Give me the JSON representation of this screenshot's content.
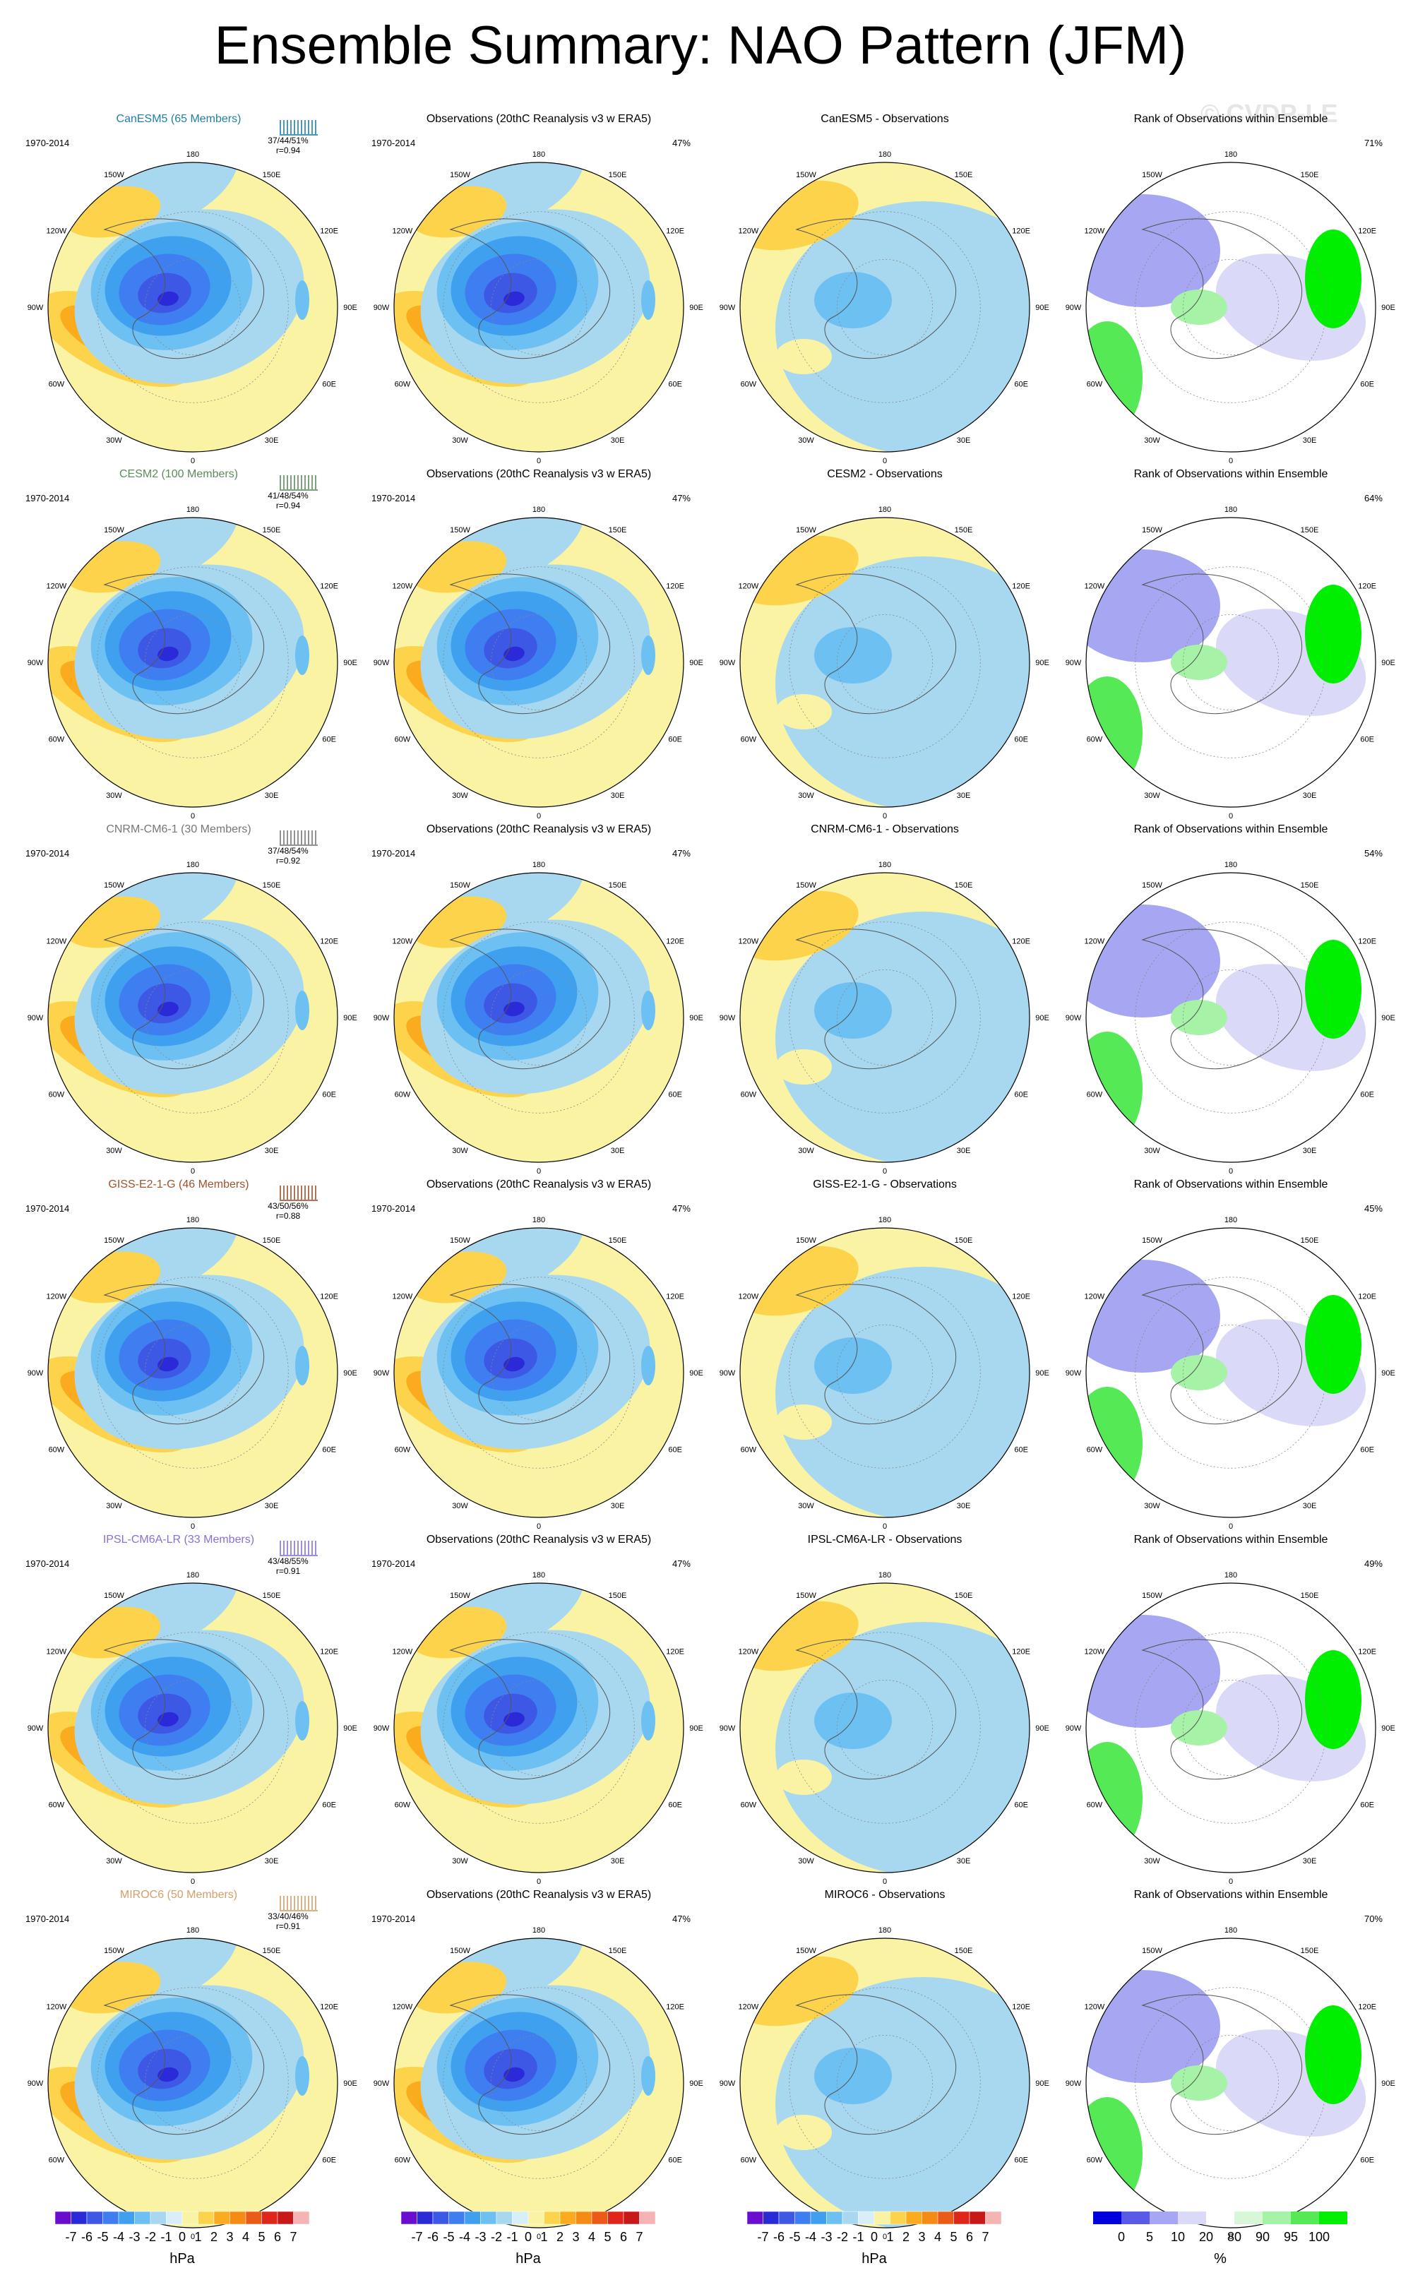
{
  "title": "Ensemble Summary: NAO Pattern (JFM)",
  "watermark": "© CVDP-LE",
  "colors": {
    "neg": [
      "#6a0dcf",
      "#2a2ad8",
      "#3e58e6",
      "#3f7ef0",
      "#3fa0f0",
      "#6dc0f2",
      "#a8d8f0"
    ],
    "pos": [
      "#fbf3a4",
      "#fcd34a",
      "#fbab1e",
      "#f58a14",
      "#ec5a17",
      "#e0251a",
      "#c81818",
      "#f5b3b3"
    ],
    "rank": [
      "#0000dd",
      "#5a5ae8",
      "#a6a6f2",
      "#dadaf8",
      "#ffffff",
      "#d8f6d8",
      "#a6f2a6",
      "#55e955",
      "#00ee00"
    ]
  },
  "common": {
    "period": "1970-2014",
    "obs_title": "Observations (20thC Reanalysis v3 w ERA5)",
    "obs_pct": "47%",
    "rank_title": "Rank of Observations within Ensemble",
    "lon_labels": [
      "180",
      "150E",
      "120E",
      "90E",
      "60E",
      "30E",
      "0",
      "30W",
      "60W",
      "90W",
      "120W",
      "150W"
    ]
  },
  "models": [
    {
      "name": "CanESM5 (65 Members)",
      "model": "CanESM5",
      "color": "#1f7fa8",
      "stats": "37/44/51%",
      "r": "r=0.94",
      "rank_pct": "71%"
    },
    {
      "name": "CESM2 (100 Members)",
      "model": "CESM2",
      "color": "#5e8a5e",
      "stats": "41/48/54%",
      "r": "r=0.94",
      "rank_pct": "64%"
    },
    {
      "name": "CNRM-CM6-1 (30 Members)",
      "model": "CNRM-CM6-1",
      "color": "#777777",
      "stats": "37/48/54%",
      "r": "r=0.92",
      "rank_pct": "54%"
    },
    {
      "name": "GISS-E2-1-G (46 Members)",
      "model": "GISS-E2-1-G",
      "color": "#a0522d",
      "stats": "43/50/56%",
      "r": "r=0.88",
      "rank_pct": "45%"
    },
    {
      "name": "IPSL-CM6A-LR (33 Members)",
      "model": "IPSL-CM6A-LR",
      "color": "#8a6fd8",
      "stats": "43/48/55%",
      "r": "r=0.91",
      "rank_pct": "49%"
    },
    {
      "name": "MIROC6 (50 Members)",
      "model": "MIROC6",
      "color": "#d2a06a",
      "stats": "33/40/46%",
      "r": "r=0.91",
      "rank_pct": "70%"
    }
  ],
  "colorbars": {
    "hpa_labels": [
      "-7",
      "-6",
      "-5",
      "-4",
      "-3",
      "-2",
      "-1",
      "0",
      "1",
      "2",
      "3",
      "4",
      "5",
      "6",
      "7"
    ],
    "hpa_unit": "hPa",
    "rank_labels": [
      "0",
      "5",
      "10",
      "20",
      "80",
      "90",
      "95",
      "100"
    ],
    "rank_unit": "%"
  }
}
